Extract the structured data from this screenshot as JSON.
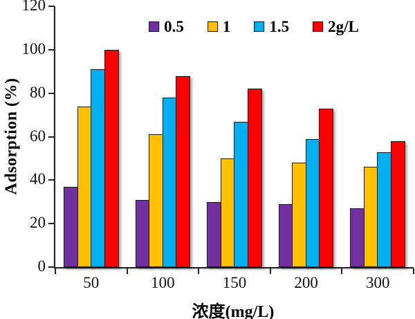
{
  "chart_data": {
    "type": "bar",
    "title": "",
    "xlabel": "浓度(mg/L)",
    "ylabel": "Adsorption (%)",
    "ylim": [
      0,
      120
    ],
    "yticks": [
      0,
      20,
      40,
      60,
      80,
      100,
      120
    ],
    "categories": [
      "50",
      "100",
      "150",
      "200",
      "300"
    ],
    "series": [
      {
        "name": "0.5",
        "color": "#7030A0",
        "values": [
          37,
          31,
          30,
          29,
          27
        ]
      },
      {
        "name": "1",
        "color": "#FFC000",
        "values": [
          74,
          61,
          50,
          48,
          46
        ]
      },
      {
        "name": "1.5",
        "color": "#00B0F0",
        "values": [
          91,
          78,
          67,
          59,
          53
        ]
      },
      {
        "name": "2g/L",
        "color": "#FF0000",
        "values": [
          100,
          88,
          82,
          73,
          58
        ]
      }
    ],
    "legend_position": "top",
    "grid": false,
    "bar_border_color": "#1a1a1a",
    "axis_color": "#222222"
  }
}
